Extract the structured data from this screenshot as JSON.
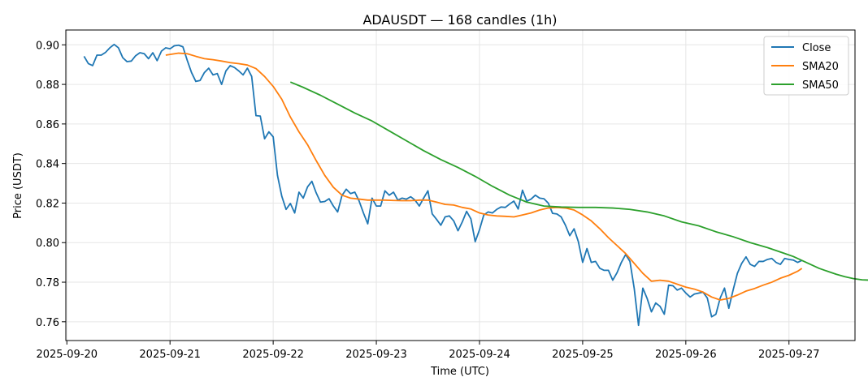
{
  "chart_data": {
    "type": "line",
    "title": "ADAUSDT — 168 candles (1h)",
    "xlabel": "Time (UTC)",
    "ylabel": "Price (USDT)",
    "x_ticks": [
      "2025-09-20",
      "2025-09-21",
      "2025-09-22",
      "2025-09-23",
      "2025-09-24",
      "2025-09-25",
      "2025-09-26",
      "2025-09-27"
    ],
    "x_tick_days": [
      0,
      1,
      2,
      3,
      4,
      5,
      6,
      7
    ],
    "y_ticks": [
      0.76,
      0.78,
      0.8,
      0.82,
      0.84,
      0.86,
      0.88,
      0.9
    ],
    "xlim": [
      -0.01,
      7.64
    ],
    "ylim": [
      0.7505,
      0.9075
    ],
    "grid": true,
    "legend_position": "top-right",
    "series": [
      {
        "name": "Close",
        "color": "#1f77b4",
        "start_hour": 8,
        "points": [
          [
            8,
            0.8942
          ],
          [
            10,
            0.8905
          ],
          [
            12,
            0.8895
          ],
          [
            14,
            0.8948
          ],
          [
            16,
            0.8948
          ],
          [
            18,
            0.8962
          ],
          [
            20,
            0.8985
          ],
          [
            22,
            0.9002
          ],
          [
            24,
            0.8985
          ],
          [
            26,
            0.8935
          ],
          [
            28,
            0.8915
          ],
          [
            30,
            0.8918
          ],
          [
            32,
            0.8945
          ],
          [
            34,
            0.896
          ],
          [
            36,
            0.8955
          ],
          [
            38,
            0.893
          ],
          [
            40,
            0.896
          ],
          [
            42,
            0.892
          ],
          [
            44,
            0.8968
          ],
          [
            46,
            0.8985
          ],
          [
            48,
            0.898
          ],
          [
            50,
            0.8995
          ],
          [
            52,
            0.8998
          ],
          [
            54,
            0.899
          ],
          [
            56,
            0.8922
          ],
          [
            58,
            0.886
          ],
          [
            60,
            0.8815
          ],
          [
            62,
            0.882
          ],
          [
            64,
            0.886
          ],
          [
            66,
            0.8882
          ],
          [
            68,
            0.8848
          ],
          [
            70,
            0.8855
          ],
          [
            72,
            0.88
          ],
          [
            74,
            0.8868
          ],
          [
            76,
            0.8895
          ],
          [
            78,
            0.8885
          ],
          [
            80,
            0.8868
          ],
          [
            82,
            0.8848
          ],
          [
            84,
            0.8882
          ],
          [
            86,
            0.884
          ],
          [
            88,
            0.8642
          ],
          [
            90,
            0.864
          ],
          [
            92,
            0.8525
          ],
          [
            94,
            0.856
          ],
          [
            96,
            0.8535
          ],
          [
            98,
            0.834
          ],
          [
            100,
            0.8235
          ],
          [
            102,
            0.8168
          ],
          [
            104,
            0.8198
          ],
          [
            106,
            0.815
          ],
          [
            108,
            0.8255
          ],
          [
            110,
            0.8225
          ],
          [
            112,
            0.8282
          ],
          [
            114,
            0.831
          ],
          [
            116,
            0.8252
          ],
          [
            118,
            0.8205
          ],
          [
            120,
            0.8208
          ],
          [
            122,
            0.8222
          ],
          [
            124,
            0.8185
          ],
          [
            126,
            0.8155
          ],
          [
            128,
            0.8238
          ],
          [
            130,
            0.827
          ],
          [
            132,
            0.8248
          ],
          [
            134,
            0.8255
          ],
          [
            136,
            0.821
          ],
          [
            138,
            0.815
          ],
          [
            140,
            0.8095
          ],
          [
            142,
            0.8225
          ],
          [
            144,
            0.8185
          ],
          [
            146,
            0.8185
          ],
          [
            148,
            0.8262
          ],
          [
            150,
            0.824
          ],
          [
            152,
            0.8255
          ],
          [
            154,
            0.8215
          ],
          [
            156,
            0.8225
          ],
          [
            158,
            0.822
          ],
          [
            160,
            0.8232
          ],
          [
            162,
            0.8215
          ],
          [
            164,
            0.8185
          ],
          [
            166,
            0.8225
          ],
          [
            168,
            0.8262
          ],
          [
            170,
            0.8145
          ],
          [
            172,
            0.8118
          ],
          [
            174,
            0.8088
          ],
          [
            176,
            0.813
          ],
          [
            178,
            0.8135
          ],
          [
            180,
            0.811
          ],
          [
            182,
            0.806
          ],
          [
            184,
            0.8105
          ],
          [
            186,
            0.8158
          ],
          [
            188,
            0.812
          ],
          [
            190,
            0.8005
          ],
          [
            192,
            0.8065
          ],
          [
            194,
            0.814
          ],
          [
            196,
            0.8155
          ],
          [
            198,
            0.815
          ],
          [
            200,
            0.8168
          ],
          [
            202,
            0.818
          ],
          [
            204,
            0.8178
          ],
          [
            206,
            0.8195
          ],
          [
            208,
            0.821
          ],
          [
            210,
            0.817
          ],
          [
            212,
            0.8265
          ],
          [
            214,
            0.821
          ],
          [
            216,
            0.822
          ],
          [
            218,
            0.824
          ],
          [
            220,
            0.8225
          ],
          [
            222,
            0.8222
          ],
          [
            224,
            0.82
          ],
          [
            226,
            0.8148
          ],
          [
            228,
            0.8145
          ],
          [
            230,
            0.813
          ],
          [
            232,
            0.8088
          ],
          [
            234,
            0.8035
          ],
          [
            236,
            0.807
          ],
          [
            238,
            0.8005
          ],
          [
            240,
            0.79
          ],
          [
            242,
            0.797
          ],
          [
            244,
            0.79
          ],
          [
            246,
            0.7905
          ],
          [
            248,
            0.787
          ],
          [
            250,
            0.786
          ],
          [
            252,
            0.786
          ],
          [
            254,
            0.781
          ],
          [
            256,
            0.7848
          ],
          [
            258,
            0.79
          ],
          [
            260,
            0.794
          ],
          [
            262,
            0.7905
          ],
          [
            264,
            0.7768
          ],
          [
            266,
            0.7582
          ],
          [
            268,
            0.777
          ],
          [
            270,
            0.7718
          ],
          [
            272,
            0.765
          ],
          [
            274,
            0.7695
          ],
          [
            276,
            0.7678
          ],
          [
            278,
            0.7638
          ],
          [
            280,
            0.7785
          ],
          [
            282,
            0.7782
          ],
          [
            284,
            0.776
          ],
          [
            286,
            0.777
          ],
          [
            288,
            0.7745
          ],
          [
            290,
            0.7725
          ],
          [
            292,
            0.774
          ],
          [
            294,
            0.7745
          ],
          [
            296,
            0.775
          ],
          [
            298,
            0.772
          ],
          [
            300,
            0.7625
          ],
          [
            302,
            0.7638
          ],
          [
            304,
            0.772
          ],
          [
            306,
            0.777
          ],
          [
            308,
            0.7668
          ],
          [
            310,
            0.776
          ],
          [
            312,
            0.7845
          ],
          [
            314,
            0.7895
          ],
          [
            316,
            0.7928
          ],
          [
            318,
            0.789
          ],
          [
            320,
            0.788
          ],
          [
            322,
            0.7905
          ],
          [
            324,
            0.7905
          ],
          [
            326,
            0.7915
          ],
          [
            328,
            0.792
          ],
          [
            330,
            0.79
          ],
          [
            332,
            0.789
          ],
          [
            334,
            0.792
          ],
          [
            336,
            0.7915
          ],
          [
            338,
            0.7912
          ],
          [
            340,
            0.79
          ],
          [
            342,
            0.791
          ]
        ]
      },
      {
        "name": "SMA20",
        "color": "#ff7f0e",
        "points": [
          [
            46,
            0.8948
          ],
          [
            52,
            0.8958
          ],
          [
            56,
            0.8955
          ],
          [
            60,
            0.8942
          ],
          [
            64,
            0.893
          ],
          [
            68,
            0.8925
          ],
          [
            72,
            0.8918
          ],
          [
            76,
            0.891
          ],
          [
            80,
            0.8905
          ],
          [
            84,
            0.8898
          ],
          [
            88,
            0.888
          ],
          [
            92,
            0.884
          ],
          [
            96,
            0.879
          ],
          [
            100,
            0.8725
          ],
          [
            104,
            0.8635
          ],
          [
            108,
            0.856
          ],
          [
            112,
            0.8495
          ],
          [
            116,
            0.8415
          ],
          [
            120,
            0.834
          ],
          [
            124,
            0.828
          ],
          [
            128,
            0.824
          ],
          [
            132,
            0.8225
          ],
          [
            136,
            0.822
          ],
          [
            140,
            0.8215
          ],
          [
            144,
            0.8215
          ],
          [
            148,
            0.8215
          ],
          [
            152,
            0.8213
          ],
          [
            156,
            0.8212
          ],
          [
            160,
            0.8212
          ],
          [
            164,
            0.8215
          ],
          [
            168,
            0.8215
          ],
          [
            172,
            0.8205
          ],
          [
            176,
            0.8193
          ],
          [
            180,
            0.819
          ],
          [
            184,
            0.8178
          ],
          [
            188,
            0.817
          ],
          [
            192,
            0.815
          ],
          [
            196,
            0.814
          ],
          [
            200,
            0.8135
          ],
          [
            204,
            0.8133
          ],
          [
            208,
            0.813
          ],
          [
            212,
            0.814
          ],
          [
            216,
            0.815
          ],
          [
            220,
            0.8165
          ],
          [
            224,
            0.8175
          ],
          [
            228,
            0.8178
          ],
          [
            232,
            0.8175
          ],
          [
            236,
            0.8165
          ],
          [
            240,
            0.814
          ],
          [
            244,
            0.811
          ],
          [
            248,
            0.807
          ],
          [
            252,
            0.8025
          ],
          [
            256,
            0.7985
          ],
          [
            260,
            0.7945
          ],
          [
            264,
            0.7895
          ],
          [
            268,
            0.7845
          ],
          [
            272,
            0.7805
          ],
          [
            276,
            0.781
          ],
          [
            280,
            0.7805
          ],
          [
            284,
            0.779
          ],
          [
            288,
            0.7775
          ],
          [
            292,
            0.7765
          ],
          [
            296,
            0.775
          ],
          [
            300,
            0.7725
          ],
          [
            304,
            0.771
          ],
          [
            308,
            0.7718
          ],
          [
            312,
            0.7735
          ],
          [
            316,
            0.7755
          ],
          [
            320,
            0.7768
          ],
          [
            324,
            0.7785
          ],
          [
            328,
            0.78
          ],
          [
            332,
            0.782
          ],
          [
            336,
            0.7835
          ],
          [
            340,
            0.7855
          ],
          [
            342,
            0.787
          ]
        ]
      },
      {
        "name": "SMA50",
        "color": "#2ca02c",
        "points": [
          [
            104,
            0.8812
          ],
          [
            110,
            0.8785
          ],
          [
            118,
            0.8745
          ],
          [
            126,
            0.87
          ],
          [
            134,
            0.8655
          ],
          [
            142,
            0.8615
          ],
          [
            150,
            0.8565
          ],
          [
            158,
            0.8515
          ],
          [
            166,
            0.8465
          ],
          [
            174,
            0.842
          ],
          [
            182,
            0.838
          ],
          [
            190,
            0.8335
          ],
          [
            198,
            0.8285
          ],
          [
            206,
            0.824
          ],
          [
            214,
            0.8205
          ],
          [
            222,
            0.8185
          ],
          [
            230,
            0.818
          ],
          [
            238,
            0.8178
          ],
          [
            246,
            0.8178
          ],
          [
            254,
            0.8175
          ],
          [
            262,
            0.8168
          ],
          [
            270,
            0.8155
          ],
          [
            278,
            0.8135
          ],
          [
            286,
            0.8105
          ],
          [
            294,
            0.8085
          ],
          [
            302,
            0.8055
          ],
          [
            310,
            0.803
          ],
          [
            318,
            0.8
          ],
          [
            326,
            0.7975
          ],
          [
            334,
            0.7945
          ],
          [
            338,
            0.793
          ],
          [
            342,
            0.791
          ],
          [
            346,
            0.789
          ],
          [
            350,
            0.787
          ],
          [
            354,
            0.7855
          ],
          [
            358,
            0.784
          ],
          [
            362,
            0.7828
          ],
          [
            366,
            0.7818
          ],
          [
            370,
            0.7812
          ],
          [
            374,
            0.781
          ]
        ]
      }
    ]
  }
}
